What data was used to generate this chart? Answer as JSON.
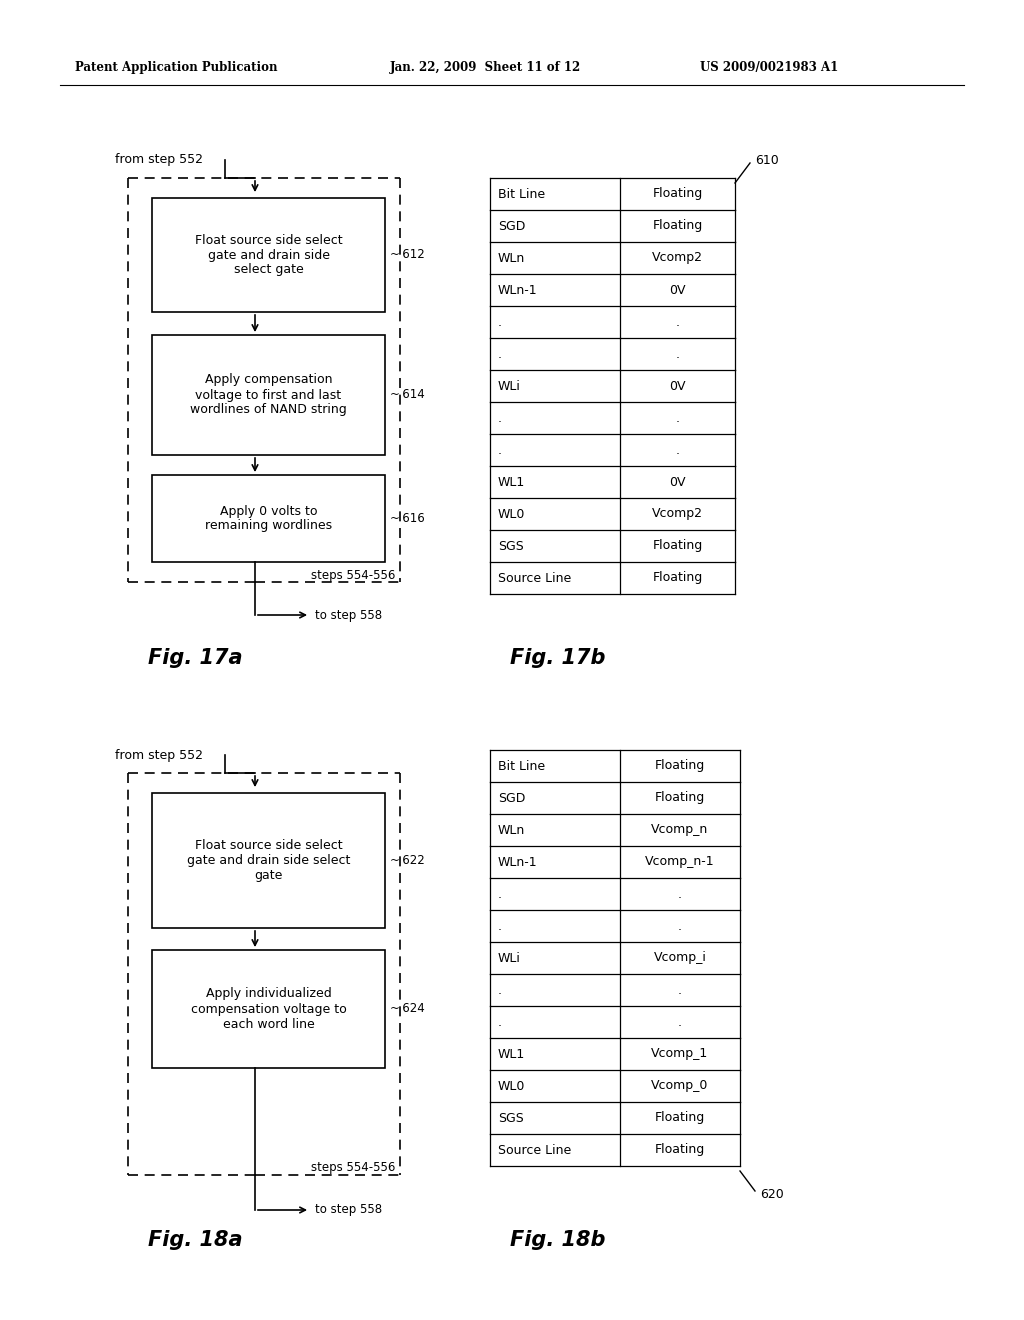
{
  "header_left": "Patent Application Publication",
  "header_mid": "Jan. 22, 2009  Sheet 11 of 12",
  "header_right": "US 2009/0021983 A1",
  "bg_color": "#ffffff",
  "fig17a": {
    "label": "Fig. 17a",
    "from_text": "from step 552",
    "boxes": [
      {
        "text": "Float source side select\ngate and drain side\nselect gate",
        "ref": "612"
      },
      {
        "text": "Apply compensation\nvoltage to first and last\nwordlines of NAND string",
        "ref": "614"
      },
      {
        "text": "Apply 0 volts to\nremaining wordlines",
        "ref": "616"
      }
    ],
    "steps_text": "steps 554-556",
    "to_text": "to step 558"
  },
  "fig17b": {
    "label": "Fig. 17b",
    "ref": "610",
    "rows": [
      [
        "Bit Line",
        "Floating"
      ],
      [
        "SGD",
        "Floating"
      ],
      [
        "WLn",
        "Vcomp2"
      ],
      [
        "WLn-1",
        "0V"
      ],
      [
        ".",
        "."
      ],
      [
        ".",
        "."
      ],
      [
        "WLi",
        "0V"
      ],
      [
        ".",
        "."
      ],
      [
        ".",
        "."
      ],
      [
        "WL1",
        "0V"
      ],
      [
        "WL0",
        "Vcomp2"
      ],
      [
        "SGS",
        "Floating"
      ],
      [
        "Source Line",
        "Floating"
      ]
    ]
  },
  "fig18a": {
    "label": "Fig. 18a",
    "from_text": "from step 552",
    "boxes": [
      {
        "text": "Float source side select\ngate and drain side select\ngate",
        "ref": "622"
      },
      {
        "text": "Apply individualized\ncompensation voltage to\neach word line",
        "ref": "624"
      }
    ],
    "steps_text": "steps 554-556",
    "to_text": "to step 558"
  },
  "fig18b": {
    "label": "Fig. 18b",
    "ref": "620",
    "rows": [
      [
        "Bit Line",
        "Floating"
      ],
      [
        "SGD",
        "Floating"
      ],
      [
        "WLn",
        "Vcomp_n"
      ],
      [
        "WLn-1",
        "Vcomp_n-1"
      ],
      [
        ".",
        "."
      ],
      [
        ".",
        "."
      ],
      [
        "WLi",
        "Vcomp_i"
      ],
      [
        ".",
        "."
      ],
      [
        ".",
        "."
      ],
      [
        "WL1",
        "Vcomp_1"
      ],
      [
        "WL0",
        "Vcomp_0"
      ],
      [
        "SGS",
        "Floating"
      ],
      [
        "Source Line",
        "Floating"
      ]
    ]
  }
}
